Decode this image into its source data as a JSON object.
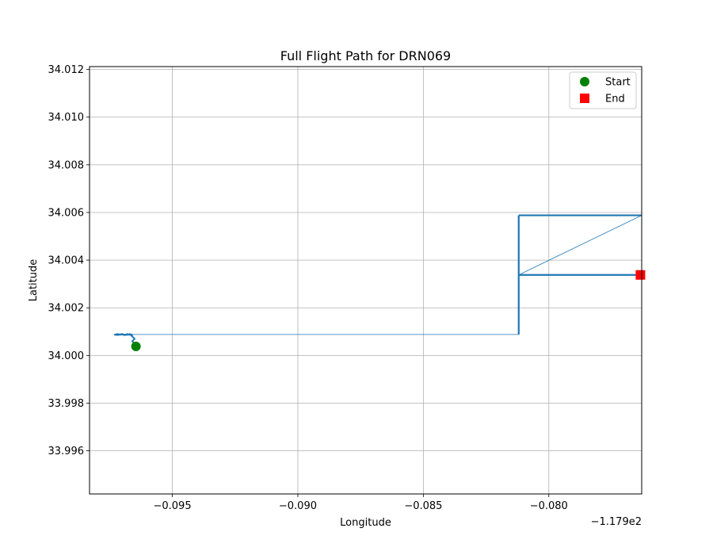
{
  "chart_data": {
    "type": "line",
    "title": "Full Flight Path for DRN069",
    "xlabel": "Longitude",
    "ylabel": "Latitude",
    "x_offset_text": "−1.179e2",
    "xlim": [
      -0.0983,
      -0.0763
    ],
    "ylim": [
      33.99419,
      34.01212
    ],
    "x_ticks": [
      {
        "value": -0.095,
        "label": "−0.095"
      },
      {
        "value": -0.09,
        "label": "−0.090"
      },
      {
        "value": -0.085,
        "label": "−0.085"
      },
      {
        "value": -0.08,
        "label": "−0.080"
      }
    ],
    "y_ticks": [
      {
        "value": 33.996,
        "label": "33.996"
      },
      {
        "value": 33.998,
        "label": "33.998"
      },
      {
        "value": 34.0,
        "label": "34.000"
      },
      {
        "value": 34.002,
        "label": "34.002"
      },
      {
        "value": 34.004,
        "label": "34.004"
      },
      {
        "value": 34.006,
        "label": "34.006"
      },
      {
        "value": 34.008,
        "label": "34.008"
      },
      {
        "value": 34.01,
        "label": "34.010"
      },
      {
        "value": 34.012,
        "label": "34.012"
      }
    ],
    "grid": true,
    "legend_position": "top-right",
    "series": [
      {
        "color": "#1f77b4",
        "segments": [
          {
            "x": [
              -0.0965,
              -0.0966,
              -0.0965,
              -0.0966,
              -0.0967,
              -0.0966,
              -0.0968,
              -0.0969,
              -0.097,
              -0.0971,
              -0.0972,
              -0.0973,
              -0.0972,
              -0.097,
              -0.0968,
              -0.0966
            ],
            "y": [
              34.0005,
              34.0006,
              34.0007,
              34.0008,
              34.0009,
              34.00085,
              34.0009,
              34.00085,
              34.0009,
              34.00088,
              34.0009,
              34.00087,
              34.00086,
              34.00088,
              34.00087,
              34.00088
            ],
            "width": 2
          },
          {
            "x": [
              -0.0966,
              -0.0812
            ],
            "y": [
              34.00088,
              34.00088
            ],
            "width": 0.8
          },
          {
            "x": [
              -0.0812,
              -0.0812
            ],
            "y": [
              34.00088,
              34.00588
            ],
            "width": 2.2
          },
          {
            "x": [
              -0.0812,
              -0.0763
            ],
            "y": [
              34.00588,
              34.00588
            ],
            "width": 2.2
          },
          {
            "x": [
              -0.0763,
              -0.0812
            ],
            "y": [
              34.00588,
              34.00338
            ],
            "width": 0.8
          },
          {
            "x": [
              -0.0812,
              -0.0763
            ],
            "y": [
              34.00338,
              34.00338
            ],
            "width": 2.2
          }
        ]
      }
    ],
    "markers": [
      {
        "name": "Start",
        "x": -0.09645,
        "y": 34.00038,
        "shape": "circle",
        "color": "#008000"
      },
      {
        "name": "End",
        "x": -0.07635,
        "y": 34.00338,
        "shape": "square",
        "color": "#ff0000"
      }
    ],
    "legend": [
      {
        "label": "Start",
        "shape": "circle",
        "color": "#008000"
      },
      {
        "label": "End",
        "shape": "square",
        "color": "#ff0000"
      }
    ]
  }
}
